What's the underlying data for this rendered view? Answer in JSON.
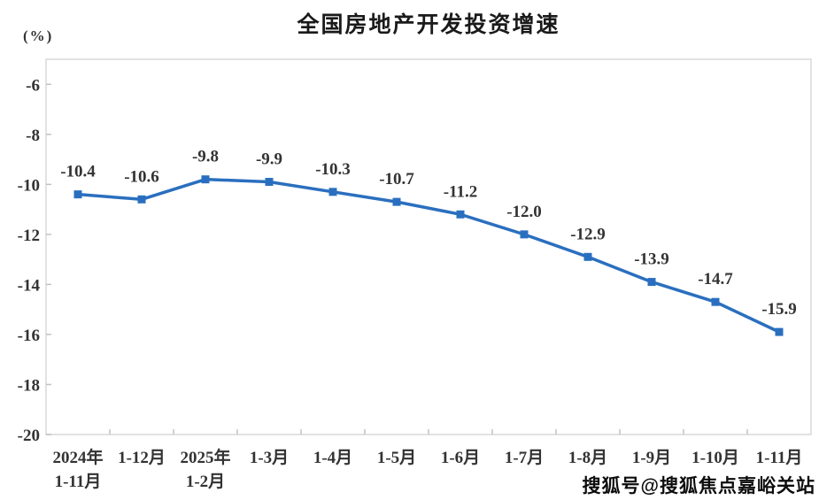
{
  "chart": {
    "title": "全国房地产开发投资增速",
    "unit_label": "(%)"
  },
  "watermark": {
    "text": "搜狐号@搜狐焦点嘉峪关站"
  },
  "chart_data": {
    "type": "line",
    "title": "全国房地产开发投资增速",
    "ylabel": "(%)",
    "categories": [
      [
        "2024年",
        "1-11月"
      ],
      [
        "1-12月"
      ],
      [
        "2025年",
        "1-2月"
      ],
      [
        "1-3月"
      ],
      [
        "1-4月"
      ],
      [
        "1-5月"
      ],
      [
        "1-6月"
      ],
      [
        "1-7月"
      ],
      [
        "1-8月"
      ],
      [
        "1-9月"
      ],
      [
        "1-10月"
      ],
      [
        "1-11月"
      ]
    ],
    "values": [
      -10.4,
      -10.6,
      -9.8,
      -9.9,
      -10.3,
      -10.7,
      -11.2,
      -12.0,
      -12.9,
      -13.9,
      -14.7,
      -15.9
    ],
    "data_labels": [
      "-10.4",
      "-10.6",
      "-9.8",
      "-9.9",
      "-10.3",
      "-10.7",
      "-11.2",
      "-12.0",
      "-12.9",
      "-13.9",
      "-14.7",
      "-15.9"
    ],
    "yticks": [
      -6,
      -8,
      -10,
      -12,
      -14,
      -16,
      -18,
      -20
    ],
    "ytick_labels": [
      "-6",
      "-8",
      "-10",
      "-12",
      "-14",
      "-16",
      "-18",
      "-20"
    ],
    "ylim": [
      -20,
      -5
    ],
    "grid": false,
    "legend_position": "none",
    "marker": "square",
    "colors": {
      "line": "#2a6fbf",
      "marker": "#2a6fbf",
      "axis_border": "#d9d9d9",
      "tick": "#c2c2c2",
      "text": "#333333"
    }
  }
}
